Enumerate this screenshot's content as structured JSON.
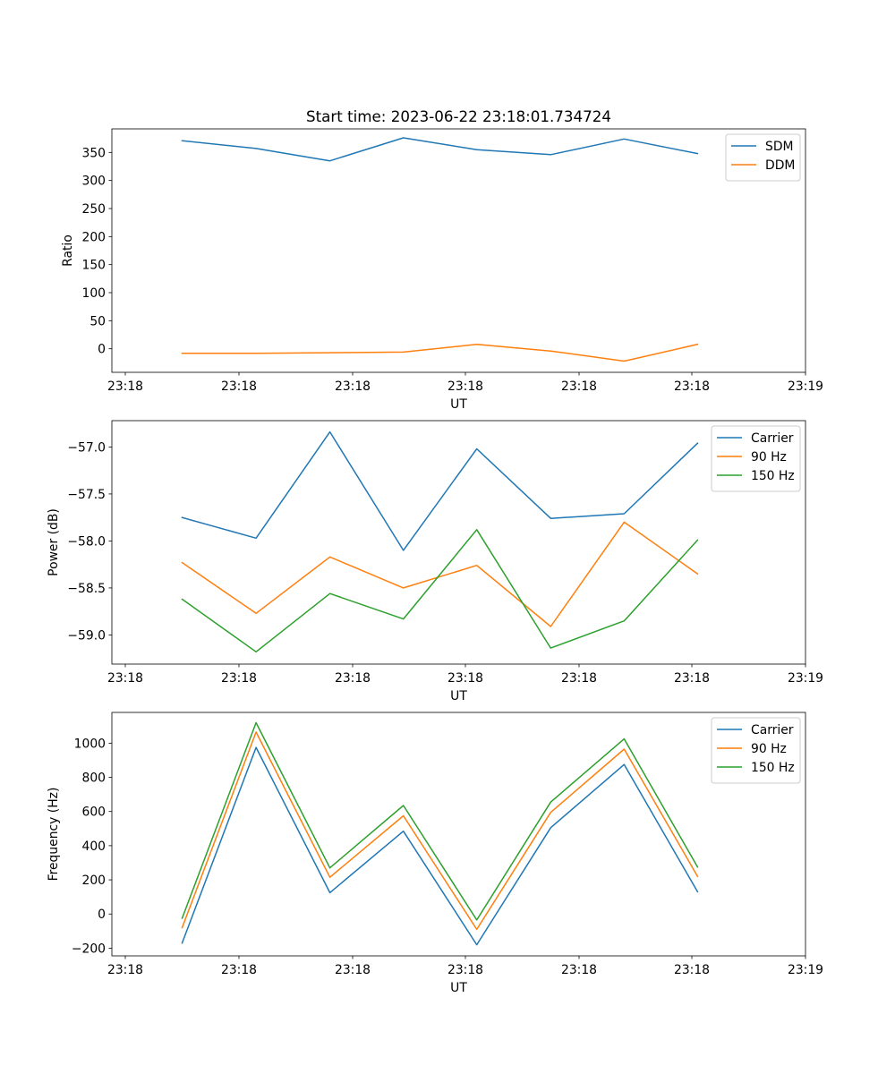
{
  "figure_title": "Start time: 2023-06-22 23:18:01.734724",
  "colors": {
    "blue": "#1f77b4",
    "orange": "#ff7f0e",
    "green": "#2ca02c",
    "axes": "#000000",
    "legend_frame": "#cccccc",
    "background": "#ffffff"
  },
  "chart_data": [
    {
      "type": "line",
      "xlabel": "UT",
      "ylabel": "Ratio",
      "x_ticks": [
        "23:18",
        "23:18",
        "23:18",
        "23:18",
        "23:18",
        "23:18",
        "23:19"
      ],
      "xlim": [
        0,
        6
      ],
      "ylim": [
        -42,
        392
      ],
      "y_ticks": [
        0,
        50,
        100,
        150,
        200,
        250,
        300,
        350
      ],
      "y_tick_labels": [
        "0",
        "50",
        "100",
        "150",
        "200",
        "250",
        "300",
        "350"
      ],
      "legend_position": "upper right",
      "x": [
        0.5,
        1.15,
        1.8,
        2.45,
        3.1,
        3.75,
        4.4,
        5.05
      ],
      "series": [
        {
          "name": "SDM",
          "color": "#1f77b4",
          "values": [
            371,
            357,
            335,
            376,
            355,
            346,
            374,
            348
          ]
        },
        {
          "name": "DDM",
          "color": "#ff7f0e",
          "values": [
            -8,
            -8,
            -7,
            -6,
            8,
            -4,
            -22,
            8
          ]
        }
      ]
    },
    {
      "type": "line",
      "xlabel": "UT",
      "ylabel": "Power (dB)",
      "x_ticks": [
        "23:18",
        "23:18",
        "23:18",
        "23:18",
        "23:18",
        "23:18",
        "23:19"
      ],
      "xlim": [
        0,
        6
      ],
      "ylim": [
        -59.31,
        -56.72
      ],
      "y_ticks": [
        -59.0,
        -58.5,
        -58.0,
        -57.5,
        -57.0
      ],
      "y_tick_labels": [
        "−59.0",
        "−58.5",
        "−58.0",
        "−57.5",
        "−57.0"
      ],
      "legend_position": "upper right",
      "x": [
        0.5,
        1.15,
        1.8,
        2.45,
        3.1,
        3.75,
        4.4,
        5.05
      ],
      "series": [
        {
          "name": "Carrier",
          "color": "#1f77b4",
          "values": [
            -57.75,
            -57.97,
            -56.84,
            -58.1,
            -57.02,
            -57.76,
            -57.71,
            -56.96
          ]
        },
        {
          "name": "90 Hz",
          "color": "#ff7f0e",
          "values": [
            -58.23,
            -58.77,
            -58.17,
            -58.5,
            -58.26,
            -58.91,
            -57.8,
            -58.35
          ]
        },
        {
          "name": "150 Hz",
          "color": "#2ca02c",
          "values": [
            -58.62,
            -59.18,
            -58.56,
            -58.83,
            -57.88,
            -59.14,
            -58.85,
            -57.99
          ]
        }
      ]
    },
    {
      "type": "line",
      "xlabel": "UT",
      "ylabel": "Frequency (Hz)",
      "x_ticks": [
        "23:18",
        "23:18",
        "23:18",
        "23:18",
        "23:18",
        "23:18",
        "23:19"
      ],
      "xlim": [
        0,
        6
      ],
      "ylim": [
        -245,
        1180
      ],
      "y_ticks": [
        -200,
        0,
        200,
        400,
        600,
        800,
        1000
      ],
      "y_tick_labels": [
        "−200",
        "0",
        "200",
        "400",
        "600",
        "800",
        "1000"
      ],
      "legend_position": "upper right",
      "x": [
        0.5,
        1.15,
        1.8,
        2.45,
        3.1,
        3.75,
        4.4,
        5.05
      ],
      "series": [
        {
          "name": "Carrier",
          "color": "#1f77b4",
          "values": [
            -170,
            975,
            125,
            485,
            -180,
            505,
            875,
            130
          ]
        },
        {
          "name": "90 Hz",
          "color": "#ff7f0e",
          "values": [
            -80,
            1065,
            215,
            575,
            -90,
            595,
            965,
            220
          ]
        },
        {
          "name": "150 Hz",
          "color": "#2ca02c",
          "values": [
            -25,
            1120,
            270,
            635,
            -35,
            655,
            1025,
            275
          ]
        }
      ]
    }
  ]
}
